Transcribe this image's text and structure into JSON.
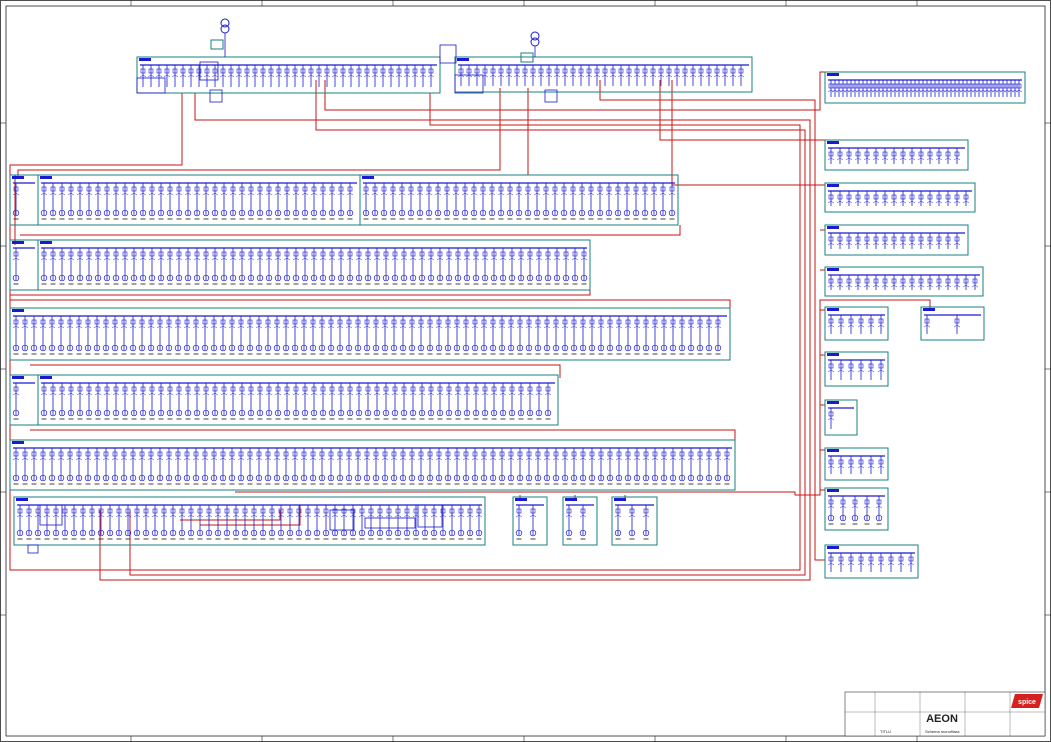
{
  "title_block": {
    "company": "AEON",
    "logo": "spice",
    "title_label": "TITLU",
    "title": "Schema monofilara"
  }
}
